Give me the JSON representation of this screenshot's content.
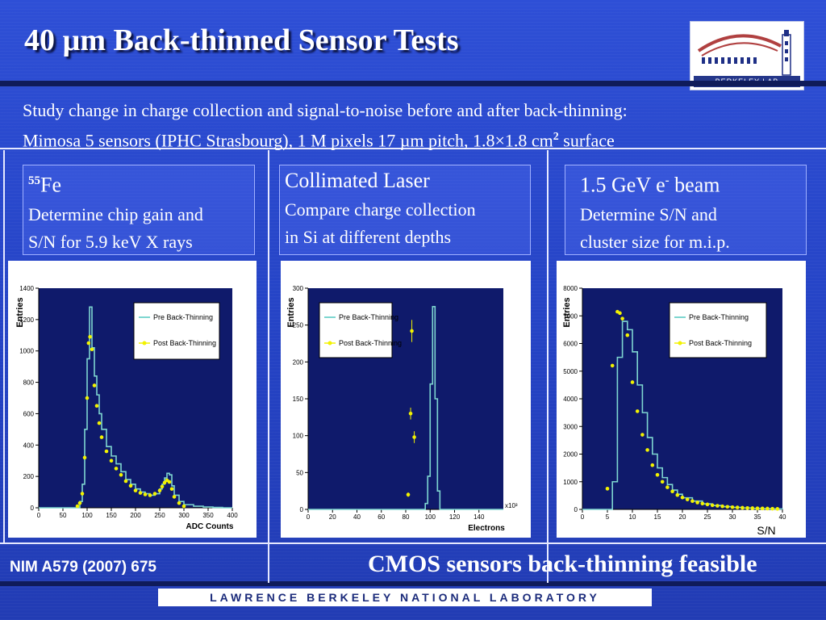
{
  "title": "40 µm Back-thinned Sensor Tests",
  "logo_text": "BERKELEY LAB",
  "intro": {
    "line1": "Study change in charge collection and signal-to-noise before and after back-thinning:",
    "line2_pre": "Mimosa 5 sensors (IPHC Strasbourg), 1 M pixels 17 µm pitch, 1.8×1.8 cm",
    "line2_sup": "2",
    "line2_post": " surface"
  },
  "panels": [
    {
      "head_sup": "55",
      "head": "Fe",
      "line1": "Determine chip gain and",
      "line2": "S/N for 5.9 keV X rays"
    },
    {
      "head_sup": "",
      "head": "Collimated Laser",
      "line1": "Compare charge collection",
      "line2": "in Si at different depths"
    },
    {
      "head_sup": "-",
      "head": "1.5 GeV e",
      "head_post": " beam",
      "line1": "Determine S/N and",
      "line2": "cluster size for m.i.p."
    }
  ],
  "reference": "NIM A579 (2007) 675",
  "conclusion": "CMOS sensors back-thinning feasible",
  "footer": "LAWRENCE BERKELEY NATIONAL LABORATORY",
  "sn_label": "S/N",
  "colors": {
    "background": "#2a46c8",
    "plot_bg": "#0f1a6b",
    "pre_line": "#7ed6d0",
    "post_points": "#f2f200"
  },
  "chart_data": [
    {
      "type": "line",
      "xlabel": "ADC Counts",
      "ylabel": "Entries",
      "xlim": [
        0,
        400
      ],
      "ylim": [
        0,
        1400
      ],
      "xticks": [
        0,
        50,
        100,
        150,
        200,
        250,
        300,
        350,
        400
      ],
      "yticks": [
        0,
        200,
        400,
        600,
        800,
        1000,
        1200,
        1400
      ],
      "legend": "top-right",
      "series": [
        {
          "name": "Pre Back-Thinning",
          "style": "step",
          "x": [
            0,
            80,
            85,
            90,
            95,
            100,
            105,
            110,
            115,
            120,
            125,
            130,
            140,
            150,
            160,
            170,
            180,
            190,
            200,
            210,
            220,
            230,
            240,
            250,
            255,
            260,
            265,
            270,
            275,
            280,
            290,
            300,
            320,
            340,
            360,
            380,
            400
          ],
          "y": [
            0,
            0,
            40,
            150,
            500,
            950,
            1280,
            1020,
            840,
            720,
            600,
            500,
            390,
            330,
            280,
            230,
            180,
            150,
            120,
            100,
            90,
            80,
            90,
            120,
            150,
            190,
            220,
            210,
            140,
            80,
            40,
            20,
            10,
            5,
            2,
            0,
            0
          ]
        },
        {
          "name": "Post Back-Thinning",
          "style": "points",
          "x": [
            80,
            85,
            90,
            95,
            100,
            103,
            106,
            110,
            115,
            120,
            125,
            130,
            140,
            150,
            160,
            170,
            180,
            190,
            200,
            210,
            220,
            230,
            240,
            250,
            255,
            260,
            265,
            270,
            275,
            280,
            290,
            300
          ],
          "y": [
            10,
            30,
            90,
            320,
            700,
            1050,
            1090,
            1010,
            780,
            650,
            540,
            450,
            360,
            300,
            250,
            210,
            170,
            140,
            110,
            95,
            85,
            80,
            90,
            110,
            135,
            160,
            175,
            165,
            120,
            70,
            30,
            10
          ]
        }
      ]
    },
    {
      "type": "line",
      "xlabel": "Electrons",
      "ylabel": "Entries",
      "xlim": [
        0,
        160
      ],
      "ylim": [
        0,
        300
      ],
      "xticks": [
        0,
        20,
        40,
        60,
        80,
        100,
        120,
        140
      ],
      "yticks": [
        0,
        50,
        100,
        150,
        200,
        250,
        300
      ],
      "x_multiplier": "x10³",
      "legend": "top-left",
      "series": [
        {
          "name": "Pre Back-Thinning",
          "style": "step",
          "x": [
            0,
            94,
            96,
            98,
            100,
            102,
            104,
            106,
            108,
            160
          ],
          "y": [
            0,
            0,
            8,
            45,
            170,
            275,
            150,
            25,
            0,
            0
          ]
        },
        {
          "name": "Post Back-Thinning",
          "style": "points",
          "x": [
            82,
            84,
            85,
            87
          ],
          "y": [
            20,
            130,
            242,
            98
          ],
          "err": [
            3,
            8,
            15,
            8
          ]
        }
      ]
    },
    {
      "type": "line",
      "xlabel": "S/N",
      "ylabel": "Entries",
      "xlim": [
        0,
        40
      ],
      "ylim": [
        0,
        8000
      ],
      "xticks": [
        0,
        5,
        10,
        15,
        20,
        25,
        30,
        35,
        40
      ],
      "yticks": [
        0,
        1000,
        2000,
        3000,
        4000,
        5000,
        6000,
        7000,
        8000
      ],
      "legend": "top-right",
      "series": [
        {
          "name": "Pre Back-Thinning",
          "style": "step",
          "x": [
            0,
            5,
            6,
            7,
            8,
            9,
            10,
            11,
            12,
            13,
            14,
            15,
            16,
            17,
            18,
            19,
            20,
            22,
            24,
            26,
            28,
            30,
            32,
            34,
            36,
            38,
            40
          ],
          "y": [
            0,
            0,
            1000,
            5500,
            6800,
            6500,
            5700,
            4500,
            3500,
            2600,
            2000,
            1500,
            1150,
            900,
            700,
            550,
            420,
            300,
            200,
            140,
            100,
            70,
            50,
            35,
            25,
            15,
            0
          ]
        },
        {
          "name": "Post Back-Thinning",
          "style": "points",
          "x": [
            5,
            6,
            7,
            7.5,
            8,
            9,
            10,
            11,
            12,
            13,
            14,
            15,
            16,
            17,
            18,
            19,
            20,
            21,
            22,
            23,
            24,
            25,
            26,
            27,
            28,
            29,
            30,
            31,
            32,
            33,
            34,
            35,
            36,
            37,
            38,
            39
          ],
          "y": [
            750,
            5200,
            7150,
            7100,
            6900,
            6300,
            4600,
            3550,
            2700,
            2150,
            1600,
            1250,
            1000,
            800,
            650,
            520,
            430,
            360,
            300,
            250,
            210,
            180,
            150,
            130,
            110,
            95,
            80,
            70,
            60,
            50,
            45,
            40,
            35,
            30,
            25,
            20
          ]
        }
      ]
    }
  ]
}
